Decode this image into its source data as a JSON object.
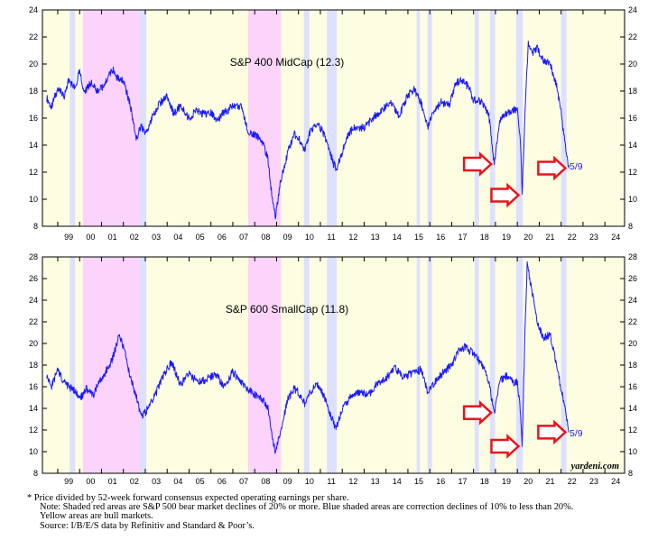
{
  "chart_data": [
    {
      "type": "line",
      "title": "S&P 400 MidCap (12.3)",
      "ylim": [
        8,
        24
      ],
      "yticks": [
        8,
        10,
        12,
        14,
        16,
        18,
        20,
        22,
        24
      ],
      "xlim": [
        1998.3,
        2024.9
      ],
      "xtick_labels": [
        "99",
        "00",
        "01",
        "02",
        "03",
        "04",
        "05",
        "06",
        "07",
        "08",
        "09",
        "10",
        "11",
        "12",
        "13",
        "14",
        "15",
        "16",
        "17",
        "18",
        "19",
        "20",
        "21",
        "22",
        "23",
        "24"
      ],
      "grid": false,
      "colors": {
        "line": "#1a1aff",
        "bear": "#fbd3fb",
        "correction": "#dde0ff",
        "bull": "#fdfde1",
        "arrow": "#e8141c"
      },
      "end_label": "5/9",
      "arrows_at": [
        2018.97,
        2020.22,
        2022.36
      ],
      "shading": [
        {
          "kind": "bull",
          "from": 1998.3,
          "to": 2024.9
        },
        {
          "kind": "correction",
          "from": 1999.55,
          "to": 1999.8
        },
        {
          "kind": "bear",
          "from": 2000.15,
          "to": 2002.75
        },
        {
          "kind": "correction",
          "from": 2002.75,
          "to": 2003.05
        },
        {
          "kind": "bear",
          "from": 2007.7,
          "to": 2009.2
        },
        {
          "kind": "correction",
          "from": 2010.25,
          "to": 2010.5
        },
        {
          "kind": "correction",
          "from": 2011.3,
          "to": 2011.75
        },
        {
          "kind": "correction",
          "from": 2015.4,
          "to": 2015.55
        },
        {
          "kind": "correction",
          "from": 2015.9,
          "to": 2016.1
        },
        {
          "kind": "correction",
          "from": 2018.05,
          "to": 2018.25
        },
        {
          "kind": "correction",
          "from": 2018.75,
          "to": 2018.98
        },
        {
          "kind": "correction",
          "from": 2019.95,
          "to": 2020.25
        },
        {
          "kind": "correction",
          "from": 2022.0,
          "to": 2022.25
        }
      ],
      "series": [
        {
          "x": [
            1998.5,
            1998.7,
            1999.0,
            1999.3,
            1999.5,
            1999.8,
            2000.0,
            2000.2,
            2000.5,
            2000.8,
            2001.0,
            2001.3,
            2001.5,
            2001.8,
            2002.0,
            2002.3,
            2002.6,
            2002.8,
            2003.0,
            2003.3,
            2003.6,
            2004.0,
            2004.3,
            2004.6,
            2005.0,
            2005.3,
            2005.7,
            2006.0,
            2006.3,
            2006.5,
            2006.8,
            2007.0,
            2007.4,
            2007.7,
            2008.0,
            2008.3,
            2008.6,
            2008.8,
            2008.95,
            2009.2,
            2009.5,
            2009.8,
            2010.0,
            2010.3,
            2010.5,
            2010.8,
            2011.0,
            2011.3,
            2011.6,
            2011.75,
            2012.0,
            2012.3,
            2012.6,
            2013.0,
            2013.4,
            2013.8,
            2014.2,
            2014.6,
            2015.0,
            2015.3,
            2015.6,
            2015.9,
            2016.1,
            2016.5,
            2016.9,
            2017.2,
            2017.5,
            2017.8,
            2018.0,
            2018.4,
            2018.7,
            2018.95,
            2019.2,
            2019.5,
            2019.8,
            2020.0,
            2020.15,
            2020.22,
            2020.35,
            2020.5,
            2020.7,
            2020.9,
            2021.2,
            2021.5,
            2021.8,
            2022.0,
            2022.2,
            2022.36
          ],
          "y": [
            17.5,
            16.8,
            18.2,
            17.6,
            18.8,
            18.2,
            19.5,
            17.8,
            18.6,
            18.0,
            18.2,
            19.0,
            19.6,
            18.8,
            18.8,
            17.0,
            14.5,
            15.4,
            14.8,
            16.0,
            17.0,
            17.6,
            16.3,
            16.9,
            16.0,
            16.5,
            16.3,
            16.4,
            15.7,
            16.3,
            16.6,
            17.0,
            16.8,
            15.0,
            14.8,
            14.5,
            13.0,
            10.0,
            8.8,
            11.5,
            13.4,
            14.8,
            14.6,
            13.6,
            14.9,
            15.5,
            15.3,
            14.3,
            12.6,
            12.3,
            13.5,
            14.9,
            15.3,
            15.3,
            16.0,
            16.6,
            17.1,
            16.2,
            17.7,
            18.1,
            17.2,
            15.2,
            16.2,
            17.2,
            17.0,
            18.6,
            18.8,
            18.2,
            17.3,
            17.2,
            16.2,
            12.6,
            15.9,
            16.3,
            16.6,
            16.5,
            14.0,
            10.3,
            16.5,
            21.6,
            20.8,
            21.2,
            20.2,
            20.0,
            18.4,
            16.4,
            13.8,
            12.3
          ]
        }
      ]
    },
    {
      "type": "line",
      "title": "S&P 600 SmallCap (11.8)",
      "ylim": [
        8,
        28
      ],
      "yticks": [
        8,
        10,
        12,
        14,
        16,
        18,
        20,
        22,
        24,
        26,
        28
      ],
      "xlim": [
        1998.3,
        2024.9
      ],
      "xtick_labels": [
        "99",
        "00",
        "01",
        "02",
        "03",
        "04",
        "05",
        "06",
        "07",
        "08",
        "09",
        "10",
        "11",
        "12",
        "13",
        "14",
        "15",
        "16",
        "17",
        "18",
        "19",
        "20",
        "21",
        "22",
        "23",
        "24"
      ],
      "grid": false,
      "colors": {
        "line": "#1a1aff",
        "bear": "#fbd3fb",
        "correction": "#dde0ff",
        "bull": "#fdfde1",
        "arrow": "#e8141c"
      },
      "end_label": "5/9",
      "arrows_at": [
        2018.97,
        2020.22,
        2022.36
      ],
      "shading": [
        {
          "kind": "bull",
          "from": 1998.3,
          "to": 2024.9
        },
        {
          "kind": "correction",
          "from": 1999.55,
          "to": 1999.8
        },
        {
          "kind": "bear",
          "from": 2000.15,
          "to": 2002.75
        },
        {
          "kind": "correction",
          "from": 2002.75,
          "to": 2003.05
        },
        {
          "kind": "bear",
          "from": 2007.7,
          "to": 2009.2
        },
        {
          "kind": "correction",
          "from": 2010.25,
          "to": 2010.5
        },
        {
          "kind": "correction",
          "from": 2011.3,
          "to": 2011.75
        },
        {
          "kind": "correction",
          "from": 2015.4,
          "to": 2015.55
        },
        {
          "kind": "correction",
          "from": 2015.9,
          "to": 2016.1
        },
        {
          "kind": "correction",
          "from": 2018.05,
          "to": 2018.25
        },
        {
          "kind": "correction",
          "from": 2018.75,
          "to": 2018.98
        },
        {
          "kind": "correction",
          "from": 2019.95,
          "to": 2020.25
        },
        {
          "kind": "correction",
          "from": 2022.0,
          "to": 2022.25
        }
      ],
      "series": [
        {
          "x": [
            1998.5,
            1998.7,
            1999.0,
            1999.3,
            1999.5,
            1999.8,
            2000.0,
            2000.3,
            2000.6,
            2000.9,
            2001.2,
            2001.5,
            2001.8,
            2002.0,
            2002.3,
            2002.6,
            2002.8,
            2003.0,
            2003.4,
            2003.8,
            2004.2,
            2004.6,
            2005.0,
            2005.4,
            2005.8,
            2006.2,
            2006.6,
            2007.0,
            2007.4,
            2007.7,
            2008.0,
            2008.3,
            2008.6,
            2008.8,
            2008.95,
            2009.2,
            2009.5,
            2009.8,
            2010.0,
            2010.3,
            2010.5,
            2010.8,
            2011.0,
            2011.3,
            2011.6,
            2011.75,
            2012.0,
            2012.4,
            2012.8,
            2013.2,
            2013.6,
            2014.0,
            2014.4,
            2014.8,
            2015.2,
            2015.6,
            2015.9,
            2016.2,
            2016.6,
            2017.0,
            2017.3,
            2017.6,
            2017.9,
            2018.2,
            2018.6,
            2018.95,
            2019.2,
            2019.5,
            2019.8,
            2020.0,
            2020.15,
            2020.22,
            2020.35,
            2020.45,
            2020.7,
            2020.9,
            2021.2,
            2021.5,
            2021.8,
            2022.0,
            2022.2,
            2022.36
          ],
          "y": [
            17.0,
            16.0,
            17.5,
            16.4,
            16.0,
            15.6,
            14.8,
            15.8,
            15.2,
            16.5,
            17.4,
            18.6,
            20.7,
            19.8,
            17.0,
            15.0,
            13.2,
            13.6,
            15.0,
            16.9,
            18.3,
            16.2,
            17.2,
            16.4,
            16.7,
            17.2,
            16.0,
            17.4,
            16.3,
            15.8,
            15.2,
            15.0,
            14.0,
            11.5,
            9.9,
            12.0,
            14.8,
            15.8,
            15.5,
            14.4,
            15.4,
            16.1,
            16.0,
            14.4,
            12.6,
            12.3,
            14.0,
            15.1,
            15.5,
            15.2,
            16.3,
            16.7,
            17.8,
            16.9,
            17.2,
            17.6,
            15.5,
            16.3,
            17.3,
            18.0,
            19.3,
            19.7,
            19.2,
            18.6,
            17.3,
            13.6,
            16.6,
            17.0,
            16.4,
            16.4,
            13.5,
            10.5,
            21.0,
            27.3,
            24.5,
            22.1,
            20.5,
            20.8,
            17.9,
            15.8,
            13.8,
            11.8
          ]
        }
      ]
    }
  ],
  "watermark": "yardeni.com",
  "notes": [
    "*  Price divided by 52-week forward consensus expected operating earnings per share.",
    "Note: Shaded red areas are S&P 500 bear market declines of 20% or more.  Blue shaded areas are correction declines of 10% to less than 20%.",
    "Yellow areas are bull markets.",
    "Source: I/B/E/S data by Refinitiv and Standard & Poor’s."
  ]
}
